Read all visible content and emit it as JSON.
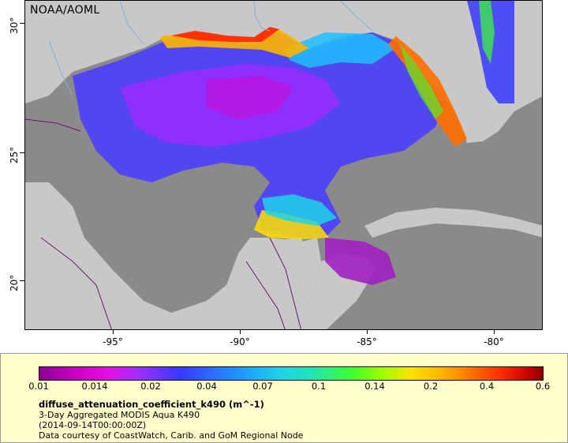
{
  "map": {
    "credit": "NOAA/AOML",
    "lat_labels": [
      "30°",
      "25°",
      "20°"
    ],
    "lon_labels": [
      "-95°",
      "-90°",
      "-85°",
      "-80°"
    ],
    "colors": {
      "ocean_nodata": "#8a8a8a",
      "land": "#c8c8c8",
      "rivers": "#7fb0d8",
      "borders": "#6a1a6a"
    }
  },
  "legend": {
    "tick_labels": [
      "0.01",
      "0.014",
      "0.02",
      "0.04",
      "0.07",
      "0.1",
      "0.14",
      "0.2",
      "0.4",
      "0.6"
    ],
    "variable": "diffuse_attenuation_coefficient_k490 (m^-1)",
    "description_1": "3-Day Aggregated MODIS Aqua K490",
    "description_2": "(2014-09-14T00:00:00Z)",
    "description_3": "Data courtesy of CoastWatch, Carib. and GoM Regional Node"
  }
}
